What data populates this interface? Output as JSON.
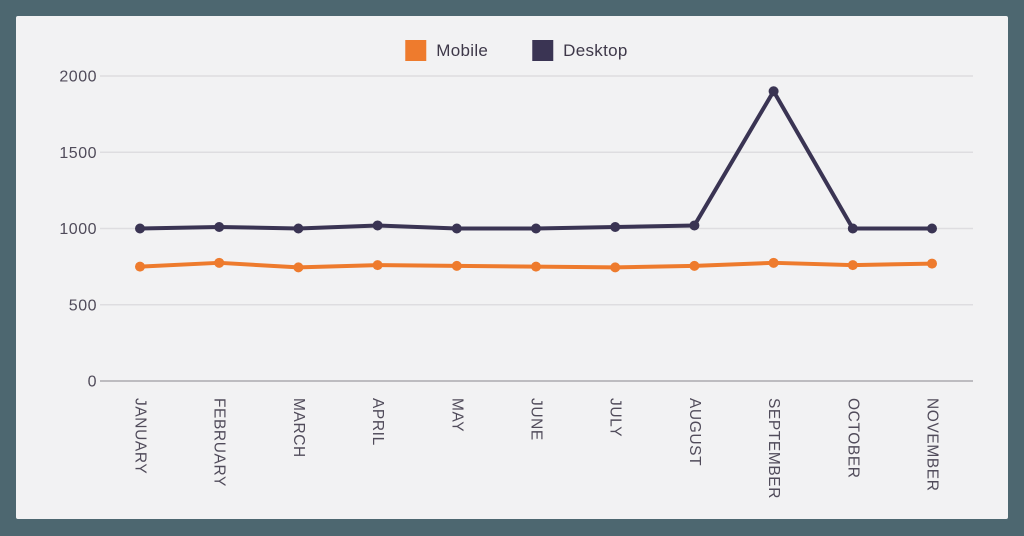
{
  "chart_data": {
    "type": "line",
    "categories": [
      "JANUARY",
      "FEBRUARY",
      "MARCH",
      "APRIL",
      "MAY",
      "JUNE",
      "JULY",
      "AUGUST",
      "SEPTEMBER",
      "OCTOBER",
      "NOVEMBER"
    ],
    "series": [
      {
        "name": "Mobile",
        "color": "#EE7B2D",
        "values": [
          750,
          775,
          745,
          760,
          755,
          750,
          745,
          755,
          775,
          760,
          770
        ]
      },
      {
        "name": "Desktop",
        "color": "#3A3453",
        "values": [
          1000,
          1010,
          1000,
          1020,
          1000,
          1000,
          1010,
          1020,
          1900,
          1000,
          1000
        ]
      }
    ],
    "title": "",
    "xlabel": "",
    "ylabel": "",
    "y_ticks": [
      "0",
      "500",
      "1000",
      "1500",
      "2000"
    ],
    "y_tick_values": [
      0,
      500,
      1000,
      1500,
      2000
    ],
    "ylim": [
      0,
      2000
    ],
    "grid": true,
    "legend_position": "top-center",
    "x_label_rotation_deg": 90
  },
  "colors": {
    "frame_background": "#4D6770",
    "card_background": "#F2F2F3",
    "gridline": "#DEDDE0",
    "zero_line": "#BDBCC0",
    "axis_tick_text": "#504B5A",
    "legend_text": "#3E3849"
  }
}
